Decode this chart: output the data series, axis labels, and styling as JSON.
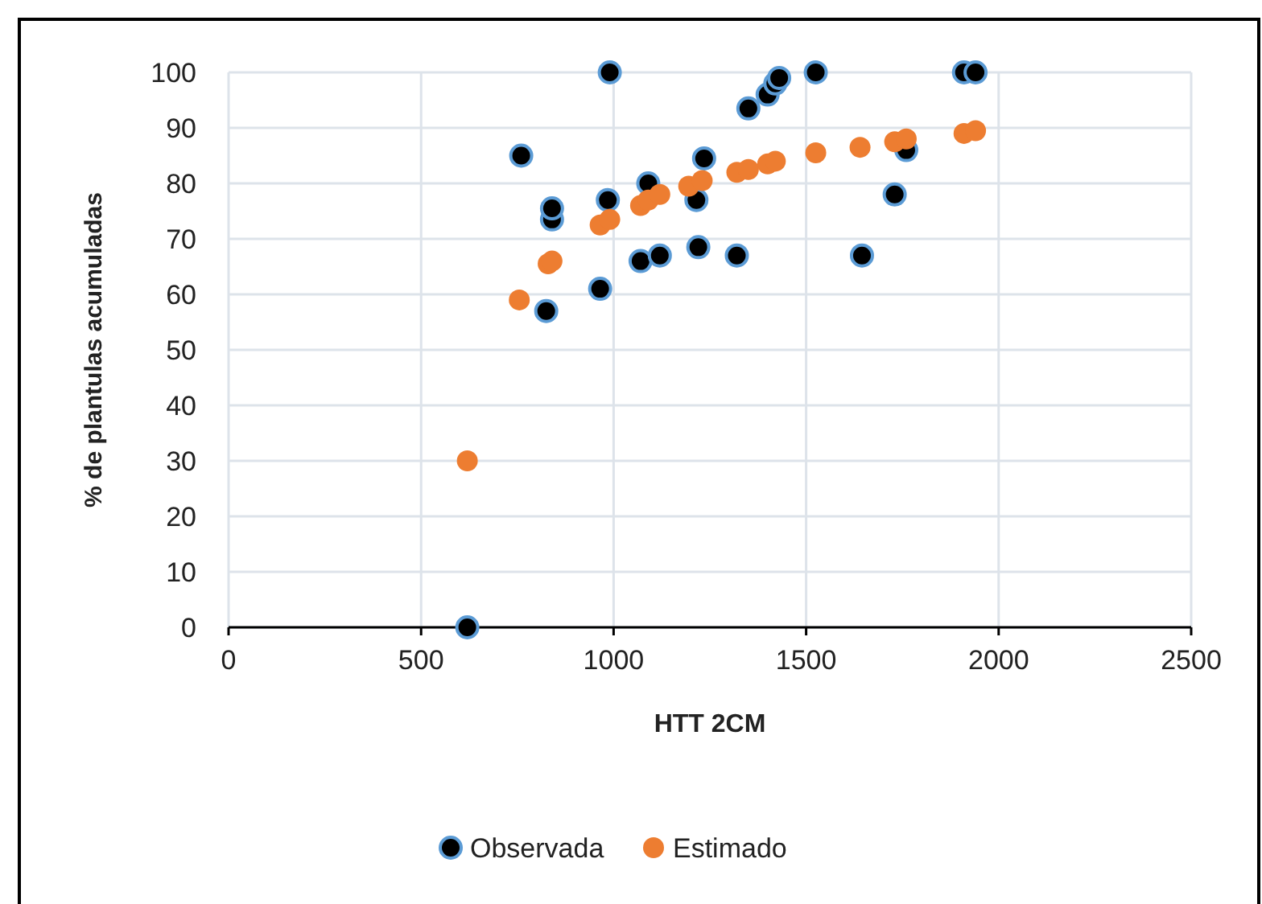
{
  "chart_data": {
    "type": "scatter",
    "xlabel": "HTT 2CM",
    "ylabel": "% de plantulas acumuladas",
    "xlim": [
      0,
      2500
    ],
    "xticks": [
      0,
      500,
      1000,
      1500,
      2000,
      2500
    ],
    "ylim": [
      0,
      100
    ],
    "yticks": [
      0,
      10,
      20,
      30,
      40,
      50,
      60,
      70,
      80,
      90,
      100
    ],
    "grid": true,
    "legend": "bottom",
    "marker": "circle",
    "series": [
      {
        "name": "Observada",
        "color": "#000000",
        "x": [
          620,
          760,
          825,
          840,
          840,
          965,
          985,
          990,
          1070,
          1090,
          1120,
          1215,
          1220,
          1235,
          1320,
          1350,
          1400,
          1420,
          1430,
          1525,
          1645,
          1730,
          1760,
          1910,
          1940
        ],
        "values": [
          0,
          85,
          57,
          73.5,
          75.5,
          61,
          77,
          100,
          66,
          80,
          67,
          77,
          68.5,
          84.5,
          67,
          93.5,
          96,
          98,
          99,
          100,
          67,
          78,
          86,
          100,
          100
        ]
      },
      {
        "name": "Estimado",
        "color": "#ed7d31",
        "x": [
          620,
          755,
          830,
          840,
          965,
          990,
          1070,
          1090,
          1120,
          1195,
          1230,
          1320,
          1350,
          1400,
          1420,
          1525,
          1640,
          1730,
          1760,
          1910,
          1940
        ],
        "values": [
          30,
          59,
          65.5,
          66,
          72.5,
          73.5,
          76,
          77,
          78,
          79.5,
          80.5,
          82,
          82.5,
          83.5,
          84,
          85.5,
          86.5,
          87.5,
          88,
          89,
          89.5
        ]
      }
    ]
  }
}
